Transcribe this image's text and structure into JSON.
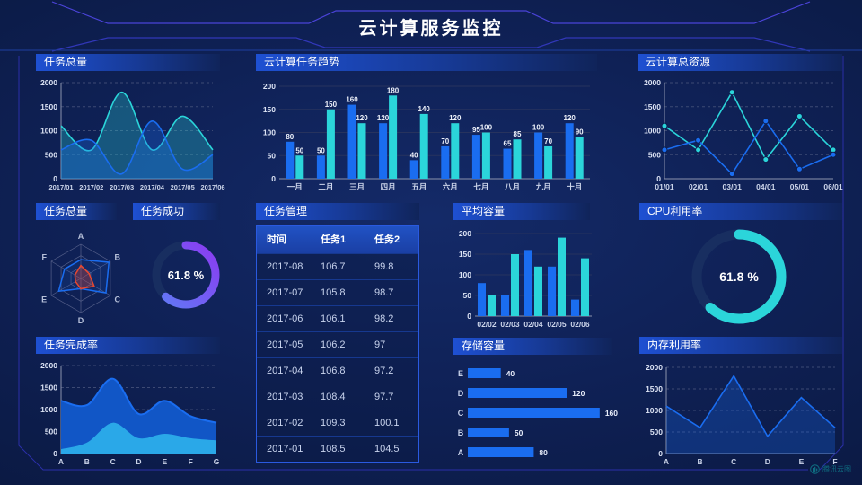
{
  "header": {
    "title": "云计算服务监控"
  },
  "footer": {
    "logo_text": "腾讯云图"
  },
  "colors": {
    "blue": "#1a6df0",
    "cyan": "#2bd5da",
    "deep-blue": "#1156c6",
    "sky-blue": "#2aa8e8",
    "purple": "#7b55f0",
    "red": "#e8472f",
    "donut-track": "#182e60",
    "panel-title": "#1e50d2",
    "frame-line": "#2b2fa8",
    "header-line": "#4a43d8"
  },
  "chart_data": [
    {
      "id": "task_total",
      "panel_title": "任务总量",
      "type": "area",
      "x": [
        "2017/01",
        "2017/02",
        "2017/03",
        "2017/04",
        "2017/05",
        "2017/06"
      ],
      "series": [
        {
          "name": "series-cyan",
          "color": "cyan",
          "values": [
            1100,
            600,
            1800,
            600,
            1300,
            600
          ]
        },
        {
          "name": "series-blue",
          "color": "blue",
          "values": [
            600,
            800,
            100,
            1200,
            200,
            500
          ]
        }
      ],
      "ylim": [
        0,
        2000
      ],
      "yticks": [
        0,
        500,
        1000,
        1500,
        2000
      ],
      "grid": "dashed",
      "smooth": true
    },
    {
      "id": "cloud_task_trend",
      "panel_title": "云计算任务趋势",
      "type": "bar",
      "x": [
        "一月",
        "二月",
        "三月",
        "四月",
        "五月",
        "六月",
        "七月",
        "八月",
        "九月",
        "十月"
      ],
      "series": [
        {
          "name": "series-blue",
          "color": "blue",
          "values": [
            80,
            50,
            160,
            120,
            40,
            70,
            95,
            65,
            100,
            120
          ]
        },
        {
          "name": "series-cyan",
          "color": "cyan",
          "values": [
            50,
            150,
            120,
            180,
            140,
            120,
            100,
            85,
            70,
            90
          ]
        }
      ],
      "ylim": [
        0,
        200
      ],
      "yticks": [
        0,
        50,
        100,
        150,
        200
      ],
      "grid": "solid",
      "value_labels": true
    },
    {
      "id": "cloud_total_resource",
      "panel_title": "云计算总资源",
      "type": "line",
      "x": [
        "01/01",
        "02/01",
        "03/01",
        "04/01",
        "05/01",
        "06/01"
      ],
      "series": [
        {
          "name": "series-cyan",
          "color": "cyan",
          "values": [
            1100,
            600,
            1800,
            400,
            1300,
            600
          ]
        },
        {
          "name": "series-blue",
          "color": "blue",
          "values": [
            600,
            800,
            100,
            1200,
            200,
            500
          ]
        }
      ],
      "ylim": [
        0,
        2000
      ],
      "yticks": [
        0,
        500,
        1000,
        1500,
        2000
      ],
      "grid": "dashed",
      "markers": true
    },
    {
      "id": "task_radar",
      "panel_title": "任务总量",
      "type": "radar",
      "axes": [
        "A",
        "B",
        "C",
        "D",
        "E",
        "F"
      ],
      "scale": "relative 0-1",
      "series": [
        {
          "name": "series-blue",
          "color": "blue",
          "values": [
            0.55,
            0.95,
            0.85,
            0.3,
            0.75,
            0.55
          ]
        },
        {
          "name": "series-red",
          "color": "red",
          "values": [
            0.38,
            0.28,
            0.45,
            0.3,
            0.18,
            0.2
          ]
        }
      ]
    },
    {
      "id": "task_success",
      "panel_title": "任务成功",
      "type": "donut",
      "value": 61.8,
      "label": "61.8 %",
      "color": "purple"
    },
    {
      "id": "task_table",
      "panel_title": "任务管理",
      "type": "table",
      "columns": [
        "时间",
        "任务1",
        "任务2"
      ],
      "rows": [
        [
          "2017-08",
          "106.7",
          "99.8"
        ],
        [
          "2017-07",
          "105.8",
          "98.7"
        ],
        [
          "2017-06",
          "106.1",
          "98.2"
        ],
        [
          "2017-05",
          "106.2",
          "97"
        ],
        [
          "2017-04",
          "106.8",
          "97.2"
        ],
        [
          "2017-03",
          "108.4",
          "97.7"
        ],
        [
          "2017-02",
          "109.3",
          "100.1"
        ],
        [
          "2017-01",
          "108.5",
          "104.5"
        ]
      ]
    },
    {
      "id": "avg_capacity",
      "panel_title": "平均容量",
      "type": "bar",
      "x": [
        "02/02",
        "02/03",
        "02/04",
        "02/05",
        "02/06"
      ],
      "series": [
        {
          "name": "series-blue",
          "color": "blue",
          "values": [
            80,
            50,
            160,
            120,
            40
          ]
        },
        {
          "name": "series-cyan",
          "color": "cyan",
          "values": [
            50,
            150,
            120,
            190,
            140
          ]
        }
      ],
      "ylim": [
        0,
        200
      ],
      "yticks": [
        0,
        50,
        100,
        150,
        200
      ],
      "grid": "solid",
      "value_labels": false
    },
    {
      "id": "cpu_usage",
      "panel_title": "CPU利用率",
      "type": "donut",
      "value": 61.8,
      "label": "61.8 %",
      "color": "cyan"
    },
    {
      "id": "task_completion",
      "panel_title": "任务完成率",
      "type": "stacked-area",
      "x": [
        "A",
        "B",
        "C",
        "D",
        "E",
        "F",
        "G"
      ],
      "series": [
        {
          "name": "series-blue",
          "color": "deep-blue",
          "line": "blue",
          "values": [
            1200,
            1100,
            1700,
            900,
            1200,
            850,
            700
          ]
        },
        {
          "name": "series-skyblue",
          "color": "sky-blue",
          "values": [
            100,
            250,
            700,
            350,
            450,
            350,
            300
          ]
        }
      ],
      "ylim": [
        0,
        2000
      ],
      "yticks": [
        0,
        500,
        1000,
        1500,
        2000
      ],
      "grid": "dashed",
      "smooth": true
    },
    {
      "id": "storage_capacity",
      "panel_title": "存储容量",
      "type": "hbar",
      "categories": [
        "E",
        "D",
        "C",
        "B",
        "A"
      ],
      "values": [
        40,
        120,
        160,
        50,
        80
      ],
      "xmax": 170
    },
    {
      "id": "memory_usage",
      "panel_title": "内存利用率",
      "type": "area",
      "x": [
        "A",
        "B",
        "C",
        "D",
        "E",
        "F"
      ],
      "series": [
        {
          "name": "series-blue",
          "color": "blue",
          "values": [
            1100,
            600,
            1800,
            400,
            1300,
            600
          ]
        }
      ],
      "ylim": [
        0,
        2000
      ],
      "yticks": [
        0,
        500,
        1000,
        1500,
        2000
      ],
      "grid": "dashed",
      "smooth": false
    }
  ]
}
